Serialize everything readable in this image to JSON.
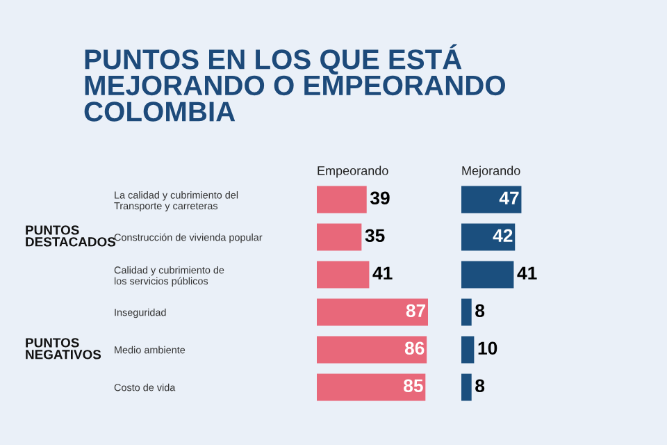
{
  "chart_data": [
    {
      "type": "bar",
      "orientation": "horizontal",
      "title": "PUNTOS EN LOS QUE ESTÁ\nMEJORANDO O EMPEORANDO\nCOLOMBIA",
      "xlabel": "Empeorando",
      "categories": [
        "La calidad y cubrimiento del\nTransporte y carreteras",
        "Construcción de vivienda popular",
        "Calidad y cubrimiento de\nlos servicios públicos",
        "Inseguridad",
        "Medio ambiente",
        "Costo de vida"
      ],
      "series": [
        {
          "color": "#e8687a",
          "values": [
            39,
            35,
            41,
            87,
            86,
            85
          ]
        }
      ],
      "data_labels": true,
      "tick_labels": "y",
      "annotations": [
        "PUNTOS\nDESTACADOS",
        "PUNTOS\nNEGATIVOS"
      ]
    },
    {
      "type": "bar",
      "orientation": "horizontal",
      "xlabel": "Mejorando",
      "categories": [
        null,
        null,
        null,
        null,
        null,
        null
      ],
      "series": [
        {
          "color": "#1b4f7e",
          "values": [
            47,
            42,
            41,
            8,
            10,
            8
          ]
        }
      ],
      "data_labels": true,
      "tick_labels": false
    }
  ]
}
